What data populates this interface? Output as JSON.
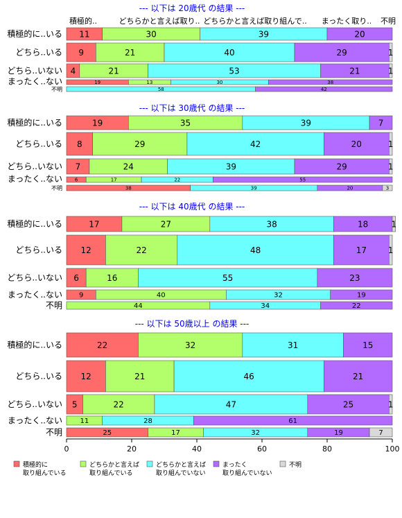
{
  "colors": {
    "cat0": "#ff6b6b",
    "cat1": "#b3ff6b",
    "cat2": "#6bffff",
    "cat3": "#b36bff",
    "cat4": "#d9d9d9"
  },
  "column_headers": [
    "積極的..",
    "どちらかと言えば取り..",
    "どちらかと言えば取り組んで..",
    "まったく取り..",
    "不明"
  ],
  "legend": [
    {
      "line1": "積極的に",
      "line2": "取り組んでいる"
    },
    {
      "line1": "どちらかと言えば",
      "line2": "取り組んでいる"
    },
    {
      "line1": "どちらかと言えば",
      "line2": "取り組んでいない"
    },
    {
      "line1": "まったく",
      "line2": "取り組んでいない"
    },
    {
      "line1": "不明",
      "line2": ""
    }
  ],
  "chart_data": {
    "type": "bar",
    "orientation": "horizontal-stacked-100",
    "xlim": [
      0,
      100
    ],
    "xticks": [
      0,
      20,
      40,
      60,
      80,
      100
    ],
    "categories": [
      "積極的に取り組んでいる",
      "どちらかと言えば取り組んでいる",
      "どちらかと言えば取り組んでいない",
      "まったく取り組んでいない",
      "不明"
    ],
    "panels": [
      {
        "title": "--- 以下は 20歳代 の結果 ---",
        "rows": [
          {
            "label": "積極的に..いる",
            "values": [
              11,
              30,
              39,
              20,
              0
            ]
          },
          {
            "label": "どちら..いる",
            "values": [
              9,
              21,
              40,
              29,
              1
            ]
          },
          {
            "label": "どちら..いない",
            "values": [
              4,
              21,
              53,
              21,
              1
            ]
          },
          {
            "label": "まったく..ない",
            "values": [
              19,
              13,
              30,
              38,
              0
            ]
          },
          {
            "label": "不明",
            "values": [
              0,
              0,
              58,
              42,
              0
            ]
          }
        ]
      },
      {
        "title": "--- 以下は 30歳代 の結果 ---",
        "rows": [
          {
            "label": "積極的に..いる",
            "values": [
              19,
              35,
              39,
              7,
              0
            ]
          },
          {
            "label": "どちら..いる",
            "values": [
              8,
              29,
              42,
              20,
              1
            ]
          },
          {
            "label": "どちら..いない",
            "values": [
              7,
              24,
              39,
              29,
              1
            ]
          },
          {
            "label": "まったく..ない",
            "values": [
              6,
              17,
              22,
              55,
              0
            ]
          },
          {
            "label": "不明",
            "values": [
              38,
              0,
              39,
              20,
              3
            ]
          }
        ]
      },
      {
        "title": "--- 以下は 40歳代 の結果 ---",
        "rows": [
          {
            "label": "積極的に..いる",
            "values": [
              17,
              27,
              38,
              18,
              1
            ]
          },
          {
            "label": "どちら..いる",
            "values": [
              12,
              22,
              48,
              17,
              1
            ]
          },
          {
            "label": "どちら..いない",
            "values": [
              6,
              16,
              55,
              23,
              0
            ]
          },
          {
            "label": "まったく..ない",
            "values": [
              9,
              40,
              32,
              19,
              0
            ]
          },
          {
            "label": "不明",
            "values": [
              0,
              44,
              34,
              22,
              0
            ]
          }
        ]
      },
      {
        "title": "--- 以下は 50歳以上 の結果 ---",
        "rows": [
          {
            "label": "積極的に..いる",
            "values": [
              22,
              32,
              31,
              15,
              0
            ]
          },
          {
            "label": "どちら..いる",
            "values": [
              12,
              21,
              46,
              21,
              0
            ]
          },
          {
            "label": "どちら..いない",
            "values": [
              5,
              22,
              47,
              25,
              1
            ]
          },
          {
            "label": "まったく..ない",
            "values": [
              0,
              11,
              28,
              61,
              0
            ]
          },
          {
            "label": "不明",
            "values": [
              25,
              17,
              32,
              19,
              7
            ]
          }
        ]
      }
    ]
  }
}
